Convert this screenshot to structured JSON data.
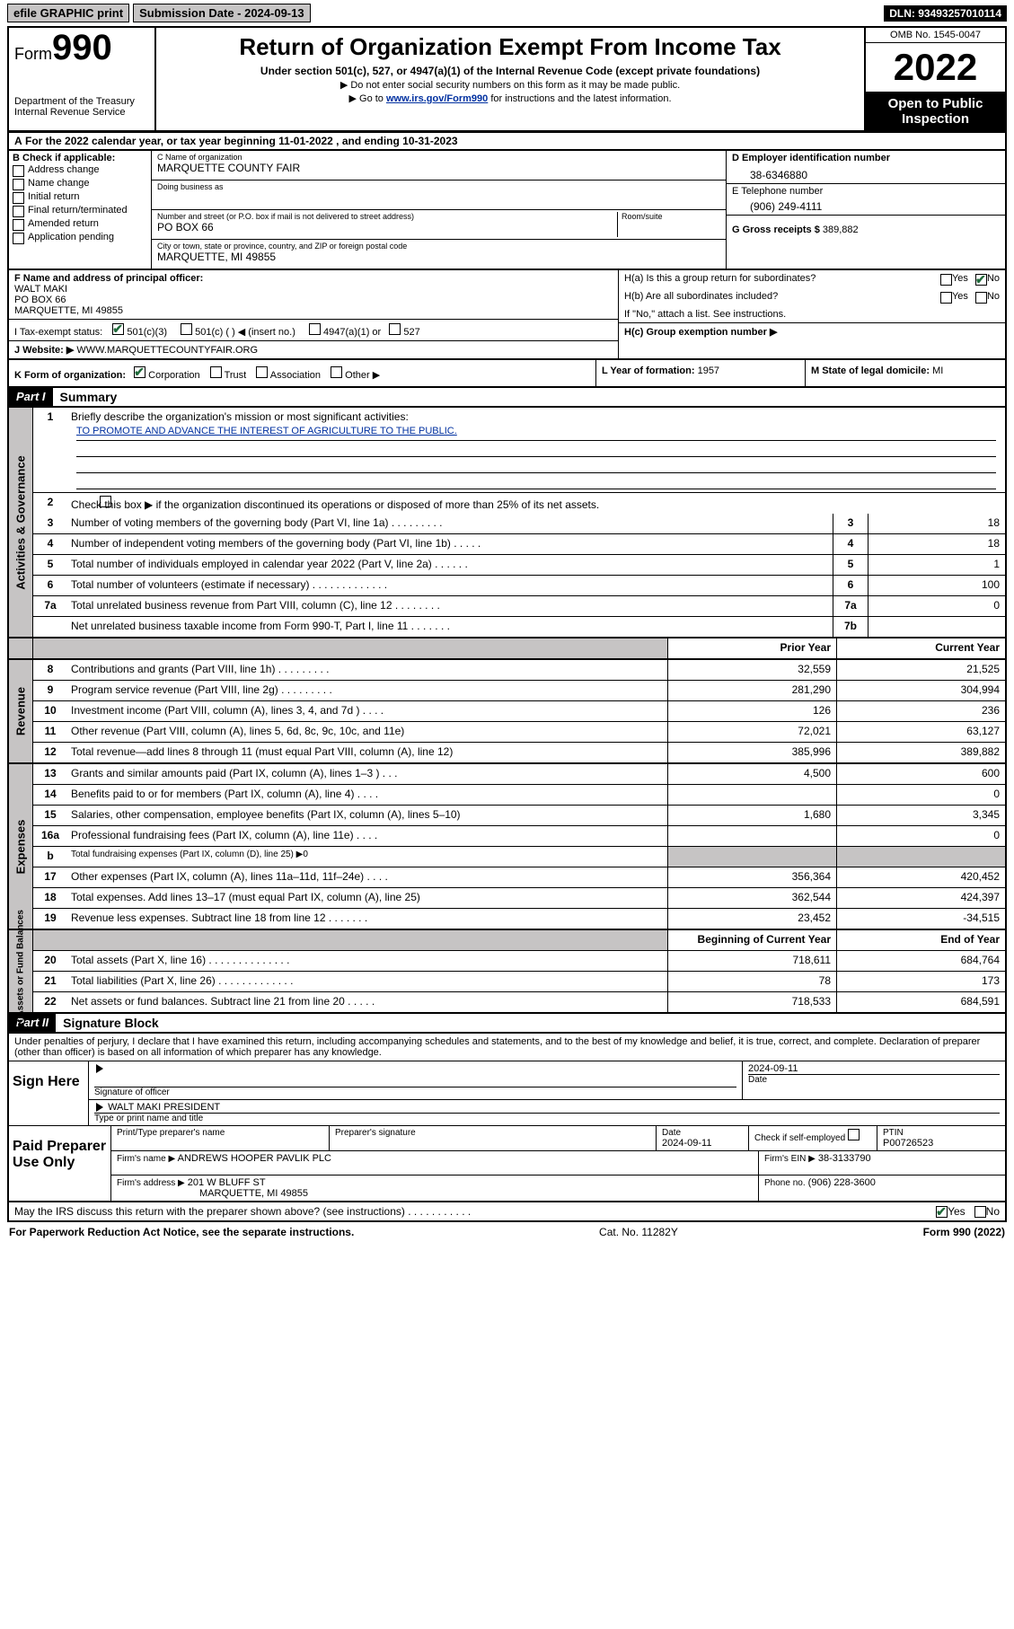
{
  "top": {
    "efile": "efile GRAPHIC print",
    "submission": "Submission Date - 2024-09-13",
    "dln": "DLN: 93493257010114"
  },
  "header": {
    "form_prefix": "Form",
    "form_number": "990",
    "dept1": "Department of the Treasury",
    "dept2": "Internal Revenue Service",
    "title": "Return of Organization Exempt From Income Tax",
    "sub1": "Under section 501(c), 527, or 4947(a)(1) of the Internal Revenue Code (except private foundations)",
    "sub2": "▶ Do not enter social security numbers on this form as it may be made public.",
    "sub3_pre": "▶ Go to ",
    "sub3_link": "www.irs.gov/Form990",
    "sub3_post": " for instructions and the latest information.",
    "omb": "OMB No. 1545-0047",
    "year": "2022",
    "open": "Open to Public Inspection"
  },
  "lineA": "For the 2022 calendar year, or tax year beginning 11-01-2022   , and ending 10-31-2023",
  "boxB": {
    "title": "B Check if applicable:",
    "opts": [
      "Address change",
      "Name change",
      "Initial return",
      "Final return/terminated",
      "Amended return",
      "Application pending"
    ]
  },
  "boxC": {
    "name_label": "C Name of organization",
    "name": "MARQUETTE COUNTY FAIR",
    "dba_label": "Doing business as",
    "addr_label": "Number and street (or P.O. box if mail is not delivered to street address)",
    "room_label": "Room/suite",
    "addr": "PO BOX 66",
    "city_label": "City or town, state or province, country, and ZIP or foreign postal code",
    "city": "MARQUETTE, MI  49855"
  },
  "boxD": {
    "label": "D Employer identification number",
    "value": "38-6346880"
  },
  "boxE": {
    "label": "E Telephone number",
    "value": "(906) 249-4111"
  },
  "boxG": {
    "label": "G Gross receipts $",
    "value": "389,882"
  },
  "boxF": {
    "label": "F Name and address of principal officer:",
    "line1": "WALT MAKI",
    "line2": "PO BOX 66",
    "line3": "MARQUETTE, MI  49855"
  },
  "boxH": {
    "ha": "H(a)  Is this a group return for subordinates?",
    "hb": "H(b)  Are all subordinates included?",
    "hb_note": "If \"No,\" attach a list. See instructions.",
    "hc": "H(c)  Group exemption number ▶"
  },
  "rowI": {
    "label": "I    Tax-exempt status:",
    "o1": "501(c)(3)",
    "o2": "501(c) (   ) ◀ (insert no.)",
    "o3": "4947(a)(1) or",
    "o4": "527"
  },
  "rowJ": {
    "label": "J    Website: ▶",
    "value": "WWW.MARQUETTECOUNTYFAIR.ORG"
  },
  "rowK": {
    "label": "K Form of organization:",
    "o1": "Corporation",
    "o2": "Trust",
    "o3": "Association",
    "o4": "Other ▶"
  },
  "rowL": {
    "label": "L Year of formation:",
    "value": "1957"
  },
  "rowM": {
    "label": "M State of legal domicile:",
    "value": "MI"
  },
  "part1": {
    "tag": "Part I",
    "title": "Summary"
  },
  "mission": {
    "q": "Briefly describe the organization's mission or most significant activities:",
    "text": "TO PROMOTE AND ADVANCE THE INTEREST OF AGRICULTURE TO THE PUBLIC."
  },
  "gov": {
    "tab": "Activities & Governance",
    "l2": "Check this box ▶    if the organization discontinued its operations or disposed of more than 25% of its net assets.",
    "rows": [
      {
        "n": "3",
        "t": "Number of voting members of the governing body (Part VI, line 1a)   .    .    .    .    .    .    .    .    .",
        "b": "3",
        "v": "18"
      },
      {
        "n": "4",
        "t": "Number of independent voting members of the governing body (Part VI, line 1b)   .    .    .    .    .",
        "b": "4",
        "v": "18"
      },
      {
        "n": "5",
        "t": "Total number of individuals employed in calendar year 2022 (Part V, line 2a)   .    .    .    .    .    .",
        "b": "5",
        "v": "1"
      },
      {
        "n": "6",
        "t": "Total number of volunteers (estimate if necessary)   .    .    .    .    .    .    .    .    .    .    .    .    .",
        "b": "6",
        "v": "100"
      },
      {
        "n": "7a",
        "t": "Total unrelated business revenue from Part VIII, column (C), line 12   .    .    .    .    .    .    .    .",
        "b": "7a",
        "v": "0"
      },
      {
        "n": "",
        "t": "Net unrelated business taxable income from Form 990-T, Part I, line 11   .    .    .    .    .    .    .",
        "b": "7b",
        "v": ""
      }
    ]
  },
  "cols": {
    "prior": "Prior Year",
    "current": "Current Year",
    "boc": "Beginning of Current Year",
    "eoy": "End of Year"
  },
  "rev": {
    "tab": "Revenue",
    "rows": [
      {
        "n": "8",
        "t": "Contributions and grants (Part VIII, line 1h)   .    .    .    .    .    .    .    .    .",
        "p": "32,559",
        "c": "21,525"
      },
      {
        "n": "9",
        "t": "Program service revenue (Part VIII, line 2g)   .    .    .    .    .    .    .    .    .",
        "p": "281,290",
        "c": "304,994"
      },
      {
        "n": "10",
        "t": "Investment income (Part VIII, column (A), lines 3, 4, and 7d )   .    .    .    .",
        "p": "126",
        "c": "236"
      },
      {
        "n": "11",
        "t": "Other revenue (Part VIII, column (A), lines 5, 6d, 8c, 9c, 10c, and 11e)",
        "p": "72,021",
        "c": "63,127"
      },
      {
        "n": "12",
        "t": "Total revenue—add lines 8 through 11 (must equal Part VIII, column (A), line 12)",
        "p": "385,996",
        "c": "389,882"
      }
    ]
  },
  "exp": {
    "tab": "Expenses",
    "rows": [
      {
        "n": "13",
        "t": "Grants and similar amounts paid (Part IX, column (A), lines 1–3 )   .    .    .",
        "p": "4,500",
        "c": "600"
      },
      {
        "n": "14",
        "t": "Benefits paid to or for members (Part IX, column (A), line 4)   .    .    .    .",
        "p": "",
        "c": "0"
      },
      {
        "n": "15",
        "t": "Salaries, other compensation, employee benefits (Part IX, column (A), lines 5–10)",
        "p": "1,680",
        "c": "3,345"
      },
      {
        "n": "16a",
        "t": "Professional fundraising fees (Part IX, column (A), line 11e)   .    .    .    .",
        "p": "",
        "c": "0"
      },
      {
        "n": "b",
        "t": "Total fundraising expenses (Part IX, column (D), line 25) ▶0",
        "p": null,
        "c": null
      },
      {
        "n": "17",
        "t": "Other expenses (Part IX, column (A), lines 11a–11d, 11f–24e)   .    .    .    .",
        "p": "356,364",
        "c": "420,452"
      },
      {
        "n": "18",
        "t": "Total expenses. Add lines 13–17 (must equal Part IX, column (A), line 25)",
        "p": "362,544",
        "c": "424,397"
      },
      {
        "n": "19",
        "t": "Revenue less expenses. Subtract line 18 from line 12   .    .    .    .    .    .    .",
        "p": "23,452",
        "c": "-34,515"
      }
    ]
  },
  "net": {
    "tab": "Net Assets or Fund Balances",
    "rows": [
      {
        "n": "20",
        "t": "Total assets (Part X, line 16)   .    .    .    .    .    .    .    .    .    .    .    .    .    .",
        "p": "718,611",
        "c": "684,764"
      },
      {
        "n": "21",
        "t": "Total liabilities (Part X, line 26)   .    .    .    .    .    .    .    .    .    .    .    .    .",
        "p": "78",
        "c": "173"
      },
      {
        "n": "22",
        "t": "Net assets or fund balances. Subtract line 21 from line 20   .    .    .    .    .",
        "p": "718,533",
        "c": "684,591"
      }
    ]
  },
  "part2": {
    "tag": "Part II",
    "title": "Signature Block"
  },
  "sig": {
    "decl": "Under penalties of perjury, I declare that I have examined this return, including accompanying schedules and statements, and to the best of my knowledge and belief, it is true, correct, and complete. Declaration of preparer (other than officer) is based on all information of which preparer has any knowledge.",
    "sign_here": "Sign Here",
    "date": "2024-09-11",
    "sig_officer": "Signature of officer",
    "date_label": "Date",
    "officer_name": "WALT MAKI  PRESIDENT",
    "type_label": "Type or print name and title"
  },
  "prep": {
    "title": "Paid Preparer Use Only",
    "h1": "Print/Type preparer's name",
    "h2": "Preparer's signature",
    "h3": "Date",
    "date": "2024-09-11",
    "h4": "Check       if self-employed",
    "h5": "PTIN",
    "ptin": "P00726523",
    "firm_label": "Firm's name    ▶",
    "firm": "ANDREWS HOOPER PAVLIK PLC",
    "ein_label": "Firm's EIN ▶",
    "ein": "38-3133790",
    "addr_label": "Firm's address ▶",
    "addr1": "201 W BLUFF ST",
    "addr2": "MARQUETTE, MI  49855",
    "phone_label": "Phone no.",
    "phone": "(906) 228-3600"
  },
  "discuss": "May the IRS discuss this return with the preparer shown above? (see instructions)   .    .    .    .    .    .    .    .    .    .    .",
  "footer": {
    "left": "For Paperwork Reduction Act Notice, see the separate instructions.",
    "mid": "Cat. No. 11282Y",
    "right": "Form 990 (2022)"
  },
  "yesno": {
    "yes": "Yes",
    "no": "No"
  }
}
